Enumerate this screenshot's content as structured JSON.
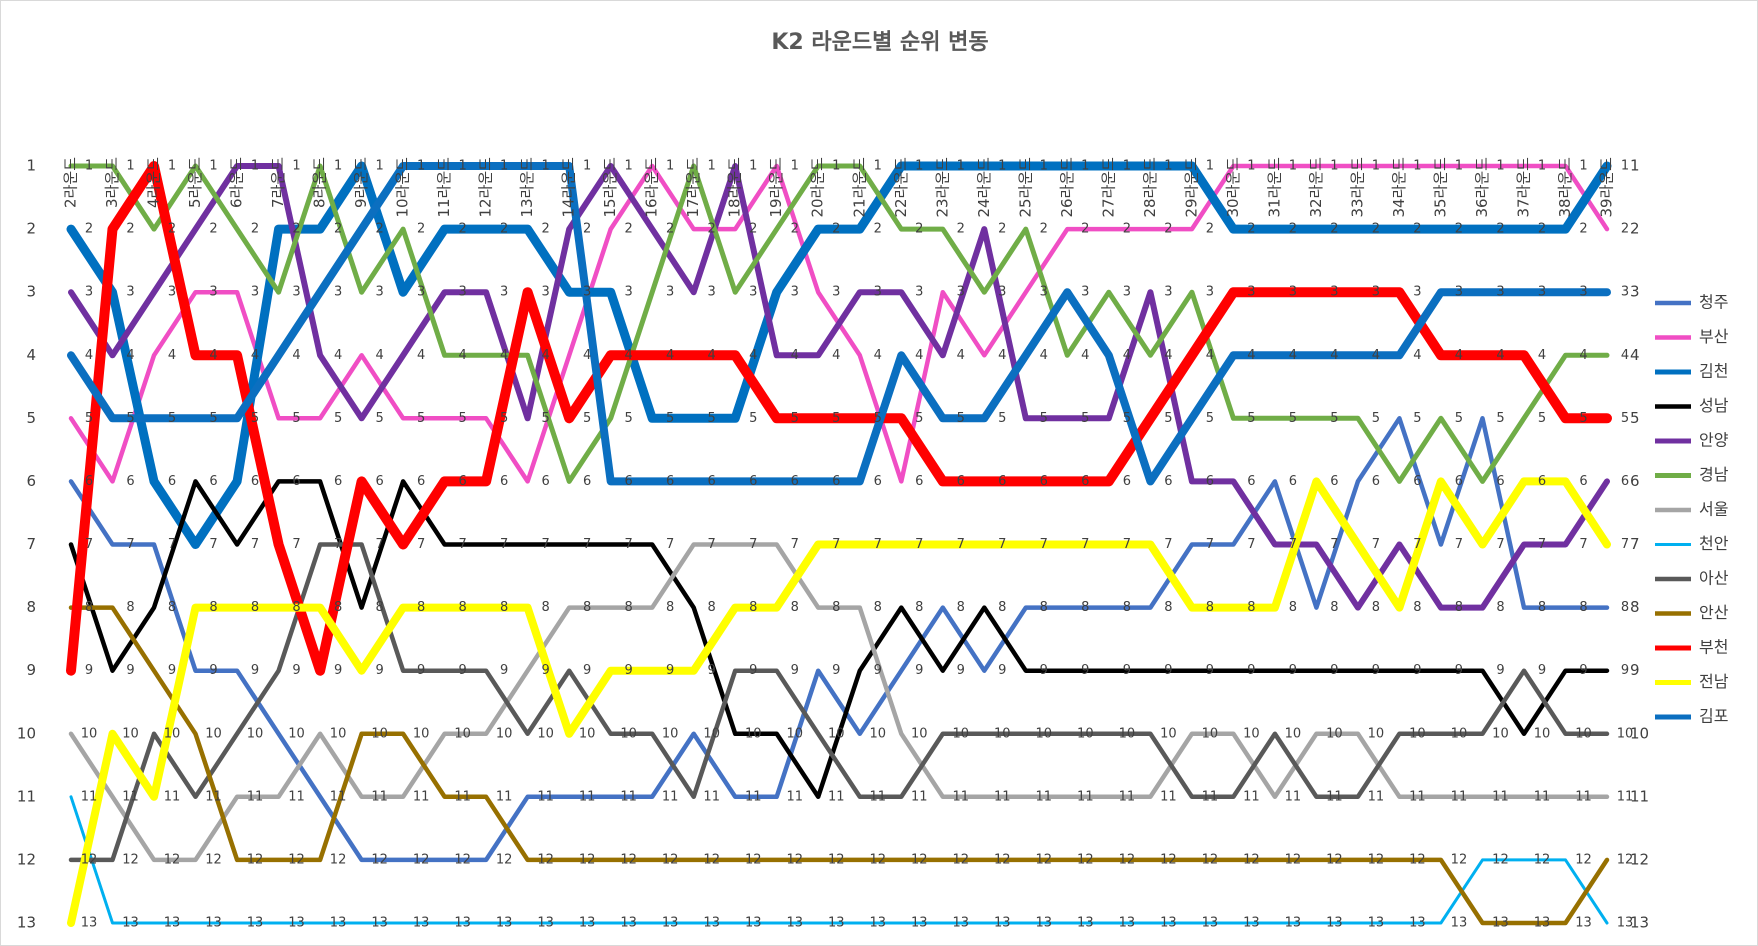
{
  "chart_data": {
    "type": "line",
    "title": "K2 라운드별 순위 변동",
    "categories": [
      "2라운드",
      "3라운드",
      "4라운드",
      "5라운드",
      "6라운드",
      "7라운드",
      "8라운드",
      "9라운드",
      "10라운드",
      "11라운드",
      "12라운드",
      "13라운드",
      "14라운드",
      "15라운드",
      "16라운드",
      "17라운드",
      "18라운드",
      "19라운드",
      "20라운드",
      "21라운드",
      "22라운드",
      "23라운드",
      "24라운드",
      "25라운드",
      "26라운드",
      "27라운드",
      "28라운드",
      "29라운드",
      "30라운드",
      "31라운드",
      "32라운드",
      "33라운드",
      "34라운드",
      "35라운드",
      "36라운드",
      "37라운드",
      "38라운드",
      "39라운드"
    ],
    "ylim": [
      13,
      1
    ],
    "yticks": [
      1,
      2,
      3,
      4,
      5,
      6,
      7,
      8,
      9,
      10,
      11,
      12,
      13
    ],
    "grid": false,
    "legend": "right",
    "data_labels": true,
    "series": [
      {
        "name": "청주",
        "color": "#4472c4",
        "line_width": 4.5,
        "values": [
          6,
          7,
          7,
          9,
          9,
          10,
          11,
          12,
          12,
          12,
          12,
          11,
          11,
          11,
          11,
          10,
          11,
          11,
          9,
          10,
          9,
          8,
          9,
          8,
          8,
          8,
          8,
          7,
          7,
          6,
          8,
          6,
          5,
          7,
          5,
          8,
          8,
          8
        ]
      },
      {
        "name": "부산",
        "color": "#f04ec4",
        "line_width": 4.5,
        "values": [
          5,
          6,
          4,
          3,
          3,
          5,
          5,
          4,
          5,
          5,
          5,
          6,
          4,
          2,
          1,
          2,
          2,
          1,
          3,
          4,
          6,
          3,
          4,
          3,
          2,
          2,
          2,
          2,
          1,
          1,
          1,
          1,
          1,
          1,
          1,
          1,
          1,
          2
        ]
      },
      {
        "name": "김천",
        "color": "#0070c0",
        "line_width": 9,
        "values": [
          2,
          3,
          6,
          7,
          6,
          2,
          2,
          1,
          3,
          2,
          2,
          2,
          3,
          3,
          5,
          5,
          5,
          3,
          2,
          2,
          1,
          1,
          1,
          1,
          1,
          1,
          1,
          1,
          2,
          2,
          2,
          2,
          2,
          2,
          2,
          2,
          2,
          1
        ]
      },
      {
        "name": "성남",
        "color": "#000000",
        "line_width": 4.5,
        "values": [
          7,
          9,
          8,
          6,
          7,
          6,
          6,
          8,
          6,
          7,
          7,
          7,
          7,
          7,
          7,
          8,
          10,
          10,
          11,
          9,
          8,
          9,
          8,
          9,
          9,
          9,
          9,
          9,
          9,
          9,
          9,
          9,
          9,
          9,
          9,
          10,
          9,
          9
        ]
      },
      {
        "name": "안양",
        "color": "#7030a0",
        "line_width": 6,
        "values": [
          3,
          4,
          3,
          2,
          1,
          1,
          4,
          5,
          4,
          3,
          3,
          5,
          2,
          1,
          2,
          3,
          1,
          4,
          4,
          3,
          3,
          4,
          2,
          5,
          5,
          5,
          3,
          6,
          6,
          7,
          7,
          8,
          7,
          8,
          8,
          7,
          7,
          6
        ]
      },
      {
        "name": "경남",
        "color": "#70ad47",
        "line_width": 5,
        "values": [
          1,
          1,
          2,
          1,
          2,
          3,
          1,
          3,
          2,
          4,
          4,
          4,
          6,
          5,
          3,
          1,
          3,
          2,
          1,
          1,
          2,
          2,
          3,
          2,
          4,
          3,
          4,
          3,
          5,
          5,
          5,
          5,
          6,
          5,
          6,
          5,
          4,
          4
        ]
      },
      {
        "name": "서울",
        "color": "#a5a5a5",
        "line_width": 4.5,
        "values": [
          10,
          11,
          12,
          12,
          11,
          11,
          10,
          11,
          11,
          10,
          10,
          9,
          8,
          8,
          8,
          7,
          7,
          7,
          8,
          8,
          10,
          11,
          11,
          11,
          11,
          11,
          11,
          10,
          10,
          11,
          10,
          10,
          11,
          11,
          11,
          11,
          11,
          11
        ]
      },
      {
        "name": "천안",
        "color": "#00b0f0",
        "line_width": 3,
        "values": [
          11,
          13,
          13,
          13,
          13,
          13,
          13,
          13,
          13,
          13,
          13,
          13,
          13,
          13,
          13,
          13,
          13,
          13,
          13,
          13,
          13,
          13,
          13,
          13,
          13,
          13,
          13,
          13,
          13,
          13,
          13,
          13,
          13,
          13,
          12,
          12,
          12,
          13
        ]
      },
      {
        "name": "아산",
        "color": "#595959",
        "line_width": 4.5,
        "values": [
          12,
          12,
          10,
          11,
          10,
          9,
          7,
          7,
          9,
          9,
          9,
          10,
          9,
          10,
          10,
          11,
          9,
          9,
          10,
          11,
          11,
          10,
          10,
          10,
          10,
          10,
          10,
          11,
          11,
          10,
          11,
          11,
          10,
          10,
          10,
          9,
          10,
          10
        ]
      },
      {
        "name": "안산",
        "color": "#977000",
        "line_width": 4.5,
        "values": [
          8,
          8,
          9,
          10,
          12,
          12,
          12,
          10,
          10,
          11,
          11,
          12,
          12,
          12,
          12,
          12,
          12,
          12,
          12,
          12,
          12,
          12,
          12,
          12,
          12,
          12,
          12,
          12,
          12,
          12,
          12,
          12,
          12,
          12,
          13,
          13,
          13,
          12
        ]
      },
      {
        "name": "부천",
        "color": "#ff0000",
        "line_width": 10,
        "values": [
          9,
          2,
          1,
          4,
          4,
          7,
          9,
          6,
          7,
          6,
          6,
          3,
          5,
          4,
          4,
          4,
          4,
          5,
          5,
          5,
          5,
          6,
          6,
          6,
          6,
          6,
          5,
          4,
          3,
          3,
          3,
          3,
          3,
          4,
          4,
          4,
          5,
          5
        ]
      },
      {
        "name": "전남",
        "color": "#ffff00",
        "line_width": 8,
        "values": [
          13,
          10,
          11,
          8,
          8,
          8,
          8,
          9,
          8,
          8,
          8,
          8,
          10,
          9,
          9,
          9,
          8,
          8,
          7,
          7,
          7,
          7,
          7,
          7,
          7,
          7,
          7,
          8,
          8,
          8,
          6,
          7,
          8,
          6,
          7,
          6,
          6,
          7
        ]
      },
      {
        "name": "김포",
        "color": "#0b6fc0",
        "line_width": 8,
        "values": [
          4,
          5,
          5,
          5,
          5,
          4,
          3,
          2,
          1,
          1,
          1,
          1,
          1,
          6,
          6,
          6,
          6,
          6,
          6,
          6,
          4,
          5,
          5,
          4,
          3,
          4,
          6,
          5,
          4,
          4,
          4,
          4,
          4,
          3,
          3,
          3,
          3,
          3
        ]
      }
    ]
  }
}
